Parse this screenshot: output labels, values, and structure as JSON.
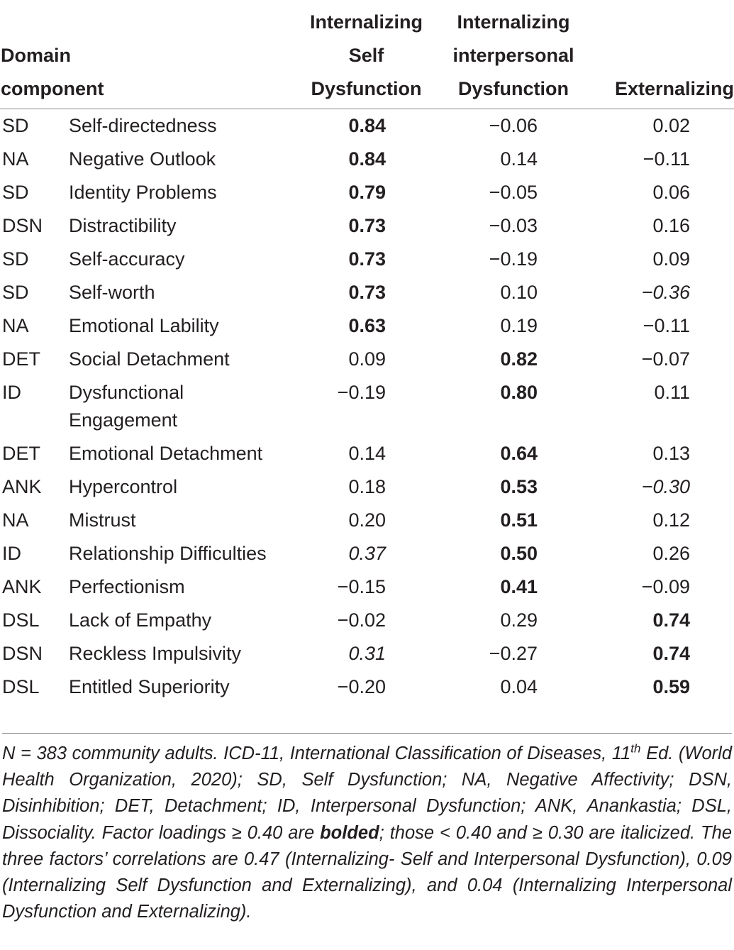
{
  "header": {
    "domain_line1": "Domain",
    "domain_line2": "component",
    "factor1": [
      "Internalizing",
      "Self",
      "Dysfunction"
    ],
    "factor2": [
      "Internalizing",
      "interpersonal",
      "Dysfunction"
    ],
    "factor3": "Externalizing"
  },
  "rows": [
    {
      "abbr": "SD",
      "component": "Self-directedness",
      "values": [
        "0.84",
        "−0.06",
        "0.02"
      ],
      "styles": [
        "b",
        "",
        ""
      ]
    },
    {
      "abbr": "NA",
      "component": "Negative Outlook",
      "values": [
        "0.84",
        "0.14",
        "−0.11"
      ],
      "styles": [
        "b",
        "",
        ""
      ]
    },
    {
      "abbr": "SD",
      "component": "Identity Problems",
      "values": [
        "0.79",
        "−0.05",
        "0.06"
      ],
      "styles": [
        "b",
        "",
        ""
      ]
    },
    {
      "abbr": "DSN",
      "component": "Distractibility",
      "values": [
        "0.73",
        "−0.03",
        "0.16"
      ],
      "styles": [
        "b",
        "",
        ""
      ]
    },
    {
      "abbr": "SD",
      "component": "Self-accuracy",
      "values": [
        "0.73",
        "−0.19",
        "0.09"
      ],
      "styles": [
        "b",
        "",
        ""
      ]
    },
    {
      "abbr": "SD",
      "component": "Self-worth",
      "values": [
        "0.73",
        "0.10",
        "−0.36"
      ],
      "styles": [
        "b",
        "",
        "i"
      ]
    },
    {
      "abbr": "NA",
      "component": "Emotional Lability",
      "values": [
        "0.63",
        "0.19",
        "−0.11"
      ],
      "styles": [
        "b",
        "",
        ""
      ]
    },
    {
      "abbr": "DET",
      "component": "Social Detachment",
      "values": [
        "0.09",
        "0.82",
        "−0.07"
      ],
      "styles": [
        "",
        "b",
        ""
      ]
    },
    {
      "abbr": "ID",
      "component": "Dysfunctional Engagement",
      "values": [
        "−0.19",
        "0.80",
        "0.11"
      ],
      "styles": [
        "",
        "b",
        ""
      ]
    },
    {
      "abbr": "DET",
      "component": "Emotional Detachment",
      "values": [
        "0.14",
        "0.64",
        "0.13"
      ],
      "styles": [
        "",
        "b",
        ""
      ]
    },
    {
      "abbr": "ANK",
      "component": "Hypercontrol",
      "values": [
        "0.18",
        "0.53",
        "−0.30"
      ],
      "styles": [
        "",
        "b",
        "i"
      ]
    },
    {
      "abbr": "NA",
      "component": "Mistrust",
      "values": [
        "0.20",
        "0.51",
        "0.12"
      ],
      "styles": [
        "",
        "b",
        ""
      ]
    },
    {
      "abbr": "ID",
      "component": "Relationship Difficulties",
      "values": [
        "0.37",
        "0.50",
        "0.26"
      ],
      "styles": [
        "i",
        "b",
        ""
      ]
    },
    {
      "abbr": "ANK",
      "component": "Perfectionism",
      "values": [
        "−0.15",
        "0.41",
        "−0.09"
      ],
      "styles": [
        "",
        "b",
        ""
      ]
    },
    {
      "abbr": "DSL",
      "component": "Lack of Empathy",
      "values": [
        "−0.02",
        "0.29",
        "0.74"
      ],
      "styles": [
        "",
        "",
        "b"
      ]
    },
    {
      "abbr": "DSN",
      "component": "Reckless Impulsivity",
      "values": [
        "0.31",
        "−0.27",
        "0.74"
      ],
      "styles": [
        "i",
        "",
        "b"
      ]
    },
    {
      "abbr": "DSL",
      "component": "Entitled Superiority",
      "values": [
        "−0.20",
        "0.04",
        "0.59"
      ],
      "styles": [
        "",
        "",
        "b"
      ]
    }
  ],
  "note": {
    "part1": "N = 383 community adults. ICD-11, International Classification of Diseases, 11",
    "sup": "th",
    "part2": " Ed. (World Health Organization, 2020); SD, Self Dysfunction; NA, Negative Affectivity; DSN, Disinhibition; DET, Detachment; ID, Interpersonal Dysfunction; ANK, Anankastia; DSL, Dissociality. Factor loadings ≥ 0.40 are ",
    "bold_word": "bolded",
    "part3": "; those < 0.40 and ≥ 0.30 are italicized. The three factors’ correlations are 0.47 (Internalizing- Self and Interpersonal Dysfunction), 0.09 (Internalizing Self Dysfunction and Externalizing), and 0.04 (Internalizing Interpersonal Dysfunction and Externalizing)."
  }
}
